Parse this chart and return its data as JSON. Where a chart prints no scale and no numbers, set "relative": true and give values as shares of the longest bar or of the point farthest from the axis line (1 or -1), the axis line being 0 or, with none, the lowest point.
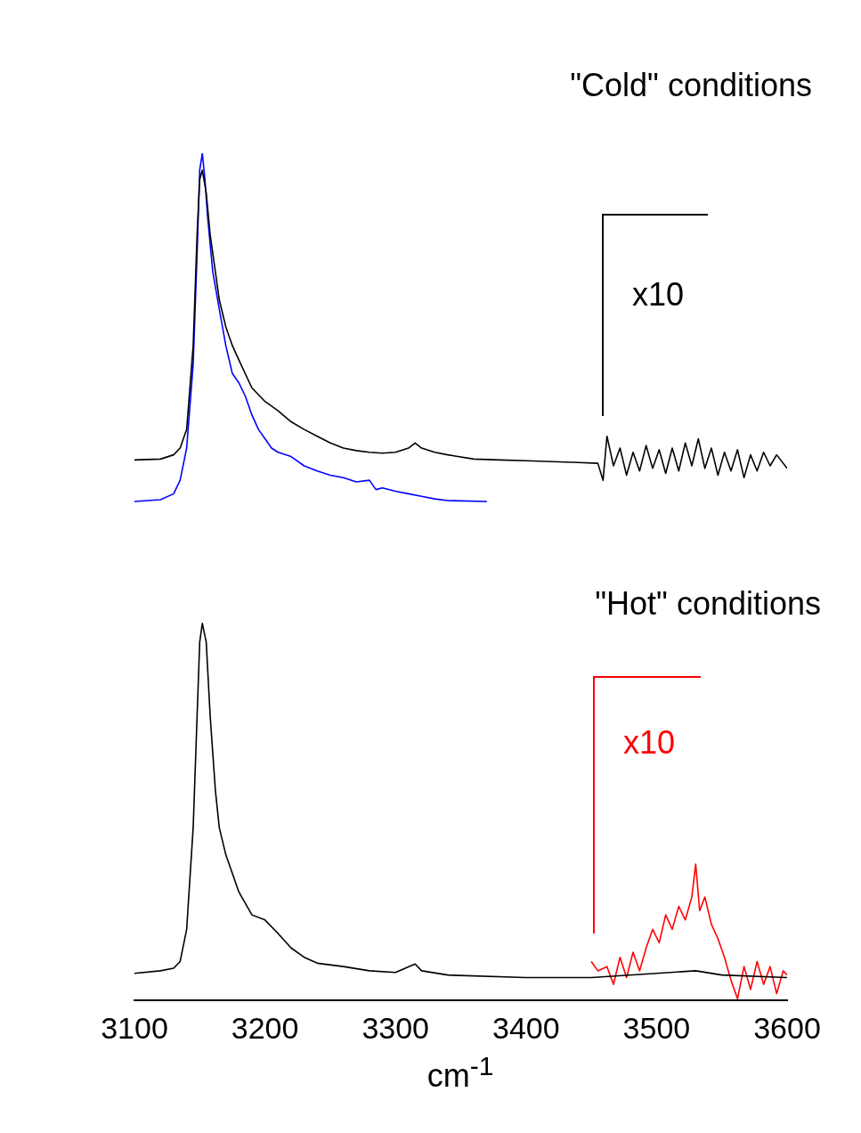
{
  "chart_data": {
    "type": "line",
    "xlabel": "cm$^{-1}$",
    "xlim": [
      3100,
      3600
    ],
    "xticks": [
      3100,
      3200,
      3300,
      3400,
      3500,
      3600
    ],
    "relative": true,
    "grid": false,
    "marker": "none",
    "line_style": "solid",
    "annotations": [
      "\"Cold\" conditions",
      "x10",
      "\"Hot\" conditions",
      "x10"
    ],
    "series": [
      {
        "color": "#000000",
        "x": [
          3100,
          3120,
          3130,
          3135,
          3140,
          3145,
          3148,
          3150,
          3152,
          3155,
          3158,
          3162,
          3165,
          3170,
          3175,
          3180,
          3190,
          3200,
          3210,
          3220,
          3230,
          3240,
          3250,
          3260,
          3270,
          3280,
          3290,
          3300,
          3310,
          3315,
          3320,
          3330,
          3340,
          3360,
          3380,
          3400,
          3420,
          3440,
          3455,
          3459,
          3462,
          3467,
          3472,
          3477,
          3482,
          3487,
          3492,
          3497,
          3502,
          3507,
          3512,
          3517,
          3522,
          3527,
          3532,
          3537,
          3542,
          3547,
          3552,
          3557,
          3562,
          3567,
          3572,
          3577,
          3582,
          3587,
          3592,
          3600
        ],
        "values": [
          0.638,
          0.639,
          0.644,
          0.652,
          0.674,
          0.773,
          0.904,
          0.969,
          0.98,
          0.953,
          0.904,
          0.86,
          0.827,
          0.795,
          0.773,
          0.756,
          0.723,
          0.707,
          0.696,
          0.683,
          0.674,
          0.666,
          0.658,
          0.652,
          0.649,
          0.647,
          0.646,
          0.647,
          0.652,
          0.658,
          0.652,
          0.647,
          0.644,
          0.639,
          0.638,
          0.637,
          0.636,
          0.635,
          0.634,
          0.614,
          0.666,
          0.631,
          0.652,
          0.62,
          0.647,
          0.625,
          0.655,
          0.628,
          0.65,
          0.622,
          0.652,
          0.625,
          0.658,
          0.631,
          0.663,
          0.628,
          0.652,
          0.62,
          0.647,
          0.625,
          0.65,
          0.617,
          0.644,
          0.625,
          0.647,
          0.631,
          0.644,
          0.628
        ]
      },
      {
        "color": "#0000ff",
        "x": [
          3100,
          3120,
          3130,
          3135,
          3140,
          3145,
          3148,
          3150,
          3152,
          3154,
          3156,
          3160,
          3165,
          3170,
          3175,
          3180,
          3185,
          3190,
          3195,
          3200,
          3205,
          3210,
          3220,
          3230,
          3240,
          3250,
          3260,
          3270,
          3280,
          3285,
          3290,
          3300,
          3310,
          3320,
          3330,
          3340,
          3370
        ],
        "values": [
          0.589,
          0.591,
          0.598,
          0.614,
          0.652,
          0.751,
          0.882,
          0.98,
          1,
          0.969,
          0.926,
          0.86,
          0.816,
          0.773,
          0.74,
          0.729,
          0.713,
          0.691,
          0.674,
          0.663,
          0.652,
          0.647,
          0.642,
          0.631,
          0.625,
          0.62,
          0.617,
          0.612,
          0.614,
          0.603,
          0.605,
          0.601,
          0.598,
          0.595,
          0.592,
          0.59,
          0.589
        ]
      },
      {
        "color": "#000000",
        "x": [
          3100,
          3120,
          3130,
          3135,
          3140,
          3145,
          3148,
          3150,
          3152,
          3155,
          3158,
          3162,
          3165,
          3170,
          3175,
          3180,
          3190,
          3200,
          3210,
          3220,
          3230,
          3240,
          3260,
          3280,
          3300,
          3315,
          3320,
          3340,
          3400,
          3450,
          3500,
          3530,
          3550,
          3600
        ],
        "values": [
          0.032,
          0.035,
          0.038,
          0.046,
          0.084,
          0.204,
          0.336,
          0.423,
          0.445,
          0.423,
          0.336,
          0.248,
          0.204,
          0.172,
          0.15,
          0.128,
          0.101,
          0.095,
          0.079,
          0.062,
          0.051,
          0.044,
          0.04,
          0.035,
          0.033,
          0.043,
          0.035,
          0.03,
          0.027,
          0.027,
          0.032,
          0.035,
          0.03,
          0.027
        ]
      },
      {
        "color": "#ff0000",
        "x": [
          3450,
          3455,
          3462,
          3467,
          3472,
          3477,
          3482,
          3487,
          3492,
          3497,
          3502,
          3507,
          3512,
          3517,
          3522,
          3527,
          3530,
          3533,
          3537,
          3542,
          3547,
          3552,
          3557,
          3562,
          3567,
          3572,
          3577,
          3582,
          3587,
          3592,
          3597,
          3600
        ],
        "values": [
          0.046,
          0.035,
          0.04,
          0.019,
          0.051,
          0.027,
          0.057,
          0.035,
          0.062,
          0.084,
          0.068,
          0.101,
          0.084,
          0.111,
          0.095,
          0.122,
          0.161,
          0.106,
          0.122,
          0.09,
          0.073,
          0.051,
          0.024,
          0.002,
          0.04,
          0.013,
          0.046,
          0.019,
          0.04,
          0.008,
          0.035,
          0.03
        ]
      }
    ]
  }
}
